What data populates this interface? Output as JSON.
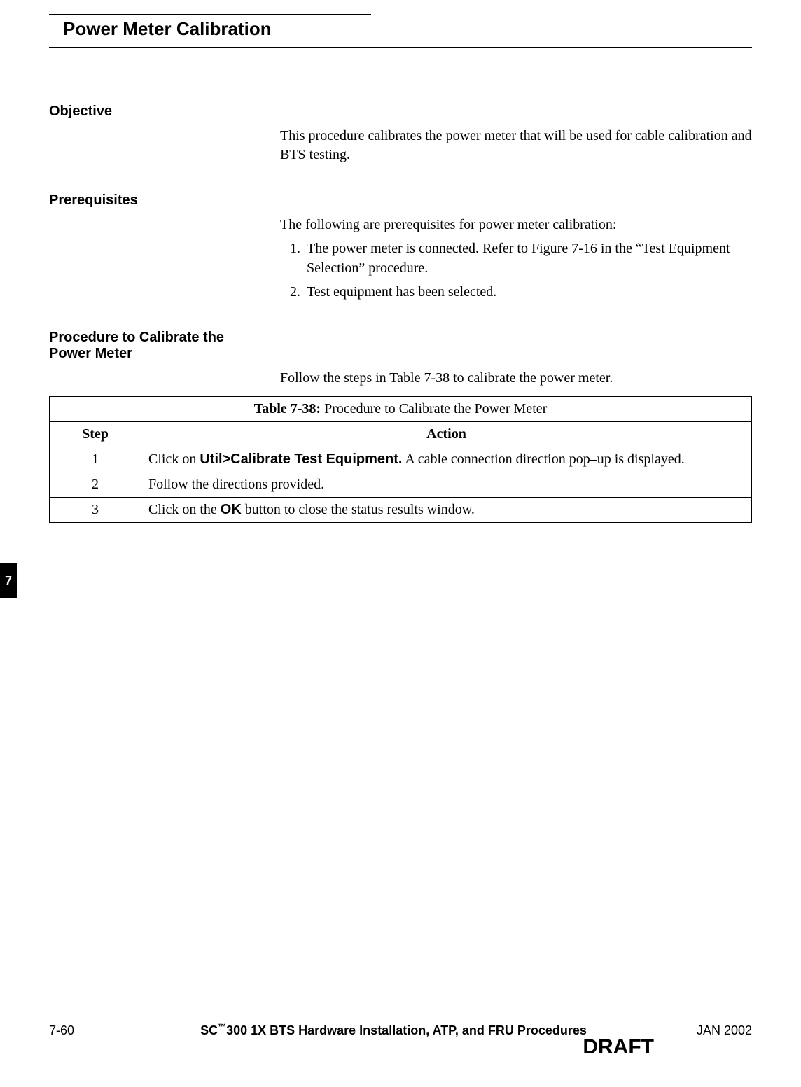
{
  "pageTitle": "Power Meter Calibration",
  "sections": {
    "objective": {
      "heading": "Objective",
      "body": "This procedure calibrates the power meter that will be used for cable calibration and BTS testing."
    },
    "prerequisites": {
      "heading": "Prerequisites",
      "intro": "The following are prerequisites for power meter calibration:",
      "items": [
        "The power meter is connected.  Refer to Figure 7-16 in the “Test Equipment Selection” procedure.",
        "Test equipment has been selected."
      ]
    },
    "procedure": {
      "heading": "Procedure to Calibrate the Power Meter",
      "intro": "Follow the steps in Table 7-38 to calibrate the power meter."
    }
  },
  "table": {
    "captionBold": "Table 7-38:",
    "captionRest": " Procedure to Calibrate the Power Meter",
    "columns": [
      "Step",
      "Action"
    ],
    "rows": [
      {
        "step": "1",
        "parts": [
          {
            "text": "Click on  ",
            "style": "normal"
          },
          {
            "text": "Util>Calibrate Test Equipment.",
            "style": "bold-sans"
          },
          {
            "text": "  A cable connection direction pop–up is displayed.",
            "style": "normal"
          }
        ]
      },
      {
        "step": "2",
        "parts": [
          {
            "text": "Follow the directions provided.",
            "style": "normal"
          }
        ]
      },
      {
        "step": "3",
        "parts": [
          {
            "text": "Click on the ",
            "style": "normal"
          },
          {
            "text": "OK",
            "style": "bold-sans"
          },
          {
            "text": " button to close the status results window.",
            "style": "normal"
          }
        ]
      }
    ]
  },
  "tab": "7",
  "footer": {
    "left": "7-60",
    "centerPrefix": "SC",
    "tm": "™",
    "centerRest": "300 1X BTS Hardware Installation, ATP, and FRU Procedures",
    "right": "JAN 2002",
    "draft": "DRAFT"
  }
}
